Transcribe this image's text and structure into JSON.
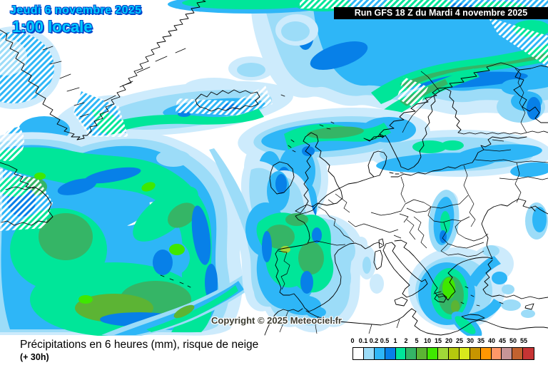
{
  "header": {
    "date_line": "Jeudi 6 novembre 2025",
    "time_line": "1:00 locale"
  },
  "run_banner": {
    "text": "Run GFS 18 Z du Mardi 4 novembre 2025"
  },
  "watermark": {
    "text": "Copyright © 2025 Meteociel.fr"
  },
  "footer": {
    "title": "Précipitations en 6 heures (mm), risque de neige",
    "subtitle": "(+ 30h)"
  },
  "legend": {
    "values": [
      "0",
      "0.1",
      "0.2",
      "0.5",
      "1",
      "2",
      "5",
      "10",
      "15",
      "20",
      "25",
      "30",
      "35",
      "40",
      "45",
      "50",
      "55"
    ],
    "colors": [
      "#FFFFFF",
      "#9CDCF8",
      "#2EB6F7",
      "#0780E8",
      "#00E699",
      "#35B566",
      "#5CB434",
      "#3FE800",
      "#A0D838",
      "#B5C90E",
      "#D8E81C",
      "#C79500",
      "#FF9702",
      "#FF9768",
      "#C79597",
      "#C2622F",
      "#C63434"
    ]
  },
  "map": {
    "colors": {
      "date_text": "#00CCFF",
      "date_outline": "#0046CC",
      "banner_bg": "#000000",
      "banner_text": "#FFFFFF",
      "coastline": "#000000",
      "sea_land": "#FFFFFF"
    }
  }
}
